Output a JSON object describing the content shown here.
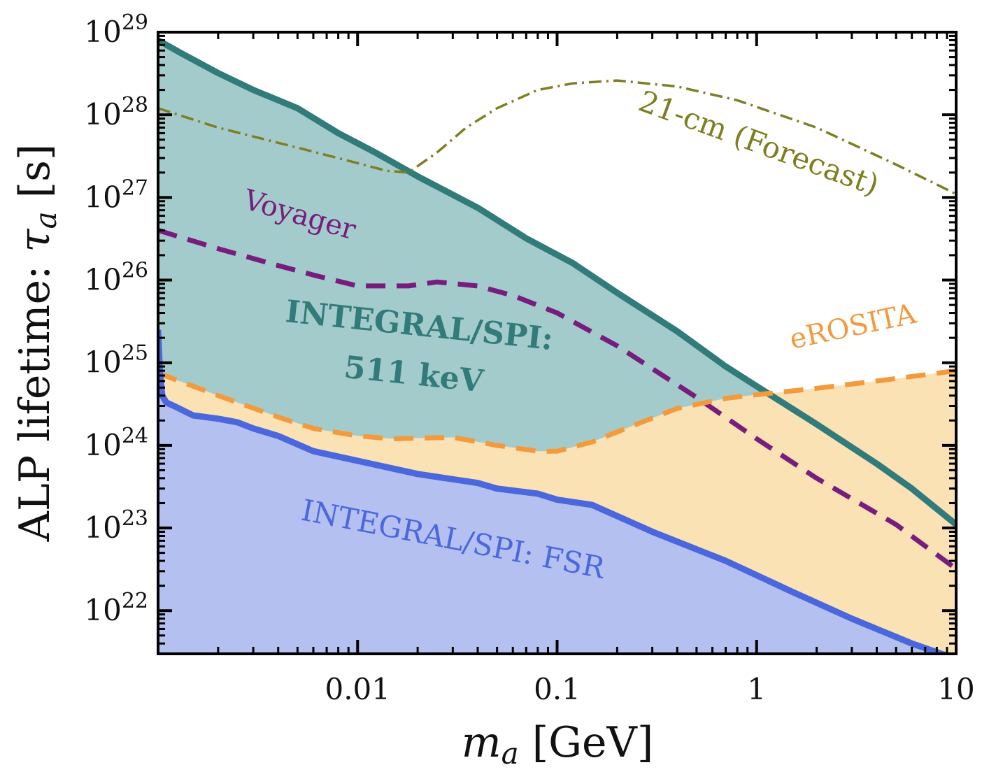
{
  "chart_data": {
    "type": "line",
    "title": "",
    "xlabel": "m_a [GeV]",
    "ylabel": "ALP lifetime: τ_a [s]",
    "xscale": "log",
    "yscale": "log",
    "xlim": [
      0.001,
      10
    ],
    "ylim": [
      3e+21,
      1e+29
    ],
    "x_ticks": [
      {
        "value": 0.01,
        "label": "0.01"
      },
      {
        "value": 0.1,
        "label": "0.1"
      },
      {
        "value": 1,
        "label": "1"
      },
      {
        "value": 10,
        "label": "10"
      }
    ],
    "y_ticks": [
      {
        "exp": 22,
        "label": "10",
        "sup": "22"
      },
      {
        "exp": 23,
        "label": "10",
        "sup": "23"
      },
      {
        "exp": 24,
        "label": "10",
        "sup": "24"
      },
      {
        "exp": 25,
        "label": "10",
        "sup": "25"
      },
      {
        "exp": 26,
        "label": "10",
        "sup": "26"
      },
      {
        "exp": 27,
        "label": "10",
        "sup": "27"
      },
      {
        "exp": 28,
        "label": "10",
        "sup": "28"
      },
      {
        "exp": 29,
        "label": "10",
        "sup": "29"
      }
    ],
    "grid": false,
    "series": [
      {
        "name": "INTEGRAL/SPI: 511 keV",
        "label_line1": "INTEGRAL/SPI:",
        "label_line2": "511 keV",
        "style": "solid",
        "filled": true,
        "color": "#317b7a",
        "fill": "#a4cbcb",
        "x": [
          0.001,
          0.0013,
          0.002,
          0.003,
          0.005,
          0.008,
          0.012,
          0.02,
          0.04,
          0.07,
          0.12,
          0.2,
          0.4,
          0.7,
          1.0,
          2.0,
          4.0,
          6.0,
          10.0
        ],
        "y": [
          8e+28,
          5.6e+28,
          3.2e+28,
          2e+28,
          1.2e+28,
          6e+27,
          3.6e+27,
          1.8e+27,
          7.5e+26,
          3.2e+26,
          1.6e+26,
          7e+25,
          2.4e+25,
          9e+24,
          5.2e+24,
          1.8e+24,
          6e+23,
          3e+23,
          1.1e+23
        ]
      },
      {
        "name": "INTEGRAL/SPI: FSR",
        "style": "solid",
        "filled": true,
        "color": "#4b67dd",
        "fill": "#b3c0f0",
        "x": [
          0.001,
          0.00102,
          0.00105,
          0.0011,
          0.0012,
          0.0015,
          0.002,
          0.0025,
          0.003,
          0.004,
          0.006,
          0.01,
          0.02,
          0.04,
          0.05,
          0.08,
          0.1,
          0.15,
          0.3,
          0.7,
          1.5,
          3.0,
          6.0,
          10.0
        ],
        "y": [
          2.5e+25,
          8e+24,
          4e+24,
          3.3e+24,
          3e+24,
          2.3e+24,
          2.1e+24,
          1.9e+24,
          1.6e+24,
          1.3e+24,
          8.5e+23,
          6.5e+23,
          4.5e+23,
          3.5e+23,
          3e+23,
          2.6e+23,
          2.2e+23,
          1.9e+23,
          9e+22,
          4e+22,
          1.7e+22,
          8e+21,
          4e+21,
          2.6e+21
        ]
      },
      {
        "name": "Voyager",
        "style": "dashed",
        "filled": false,
        "color": "#761d7e",
        "x": [
          0.001,
          0.002,
          0.004,
          0.006,
          0.01,
          0.018,
          0.025,
          0.04,
          0.06,
          0.1,
          0.2,
          0.5,
          1.0,
          2.0,
          5.0,
          10.0
        ],
        "y": [
          4e+26,
          2.4e+26,
          1.5e+26,
          1.15e+26,
          8.5e+25,
          8.5e+25,
          9.5e+25,
          8.5e+25,
          6.5e+25,
          4e+25,
          1.6e+25,
          3.8e+24,
          1.2e+24,
          4e+23,
          1.1e+23,
          3.2e+22
        ]
      },
      {
        "name": "eROSITA",
        "style": "dashed",
        "filled": true,
        "color": "#f39a3d",
        "fill": "#fae2b4",
        "x": [
          0.001,
          0.002,
          0.004,
          0.006,
          0.01,
          0.015,
          0.03,
          0.05,
          0.08,
          0.1,
          0.15,
          0.25,
          0.4,
          0.7,
          1.0,
          2.0,
          4.0,
          10.0
        ],
        "y": [
          7.5e+24,
          4e+24,
          2.2e+24,
          1.6e+24,
          1.3e+24,
          1.2e+24,
          1.25e+24,
          1e+24,
          8.5e+23,
          8.5e+23,
          1.1e+24,
          1.8e+24,
          2.8e+24,
          3.7e+24,
          4.1e+24,
          4.9e+24,
          6e+24,
          8e+24
        ]
      },
      {
        "name": "21-cm (Forecast)",
        "style": "dashdot",
        "filled": false,
        "color": "#7e7e22",
        "x": [
          0.001,
          0.002,
          0.005,
          0.01,
          0.014,
          0.018,
          0.025,
          0.035,
          0.05,
          0.08,
          0.12,
          0.2,
          0.4,
          0.8,
          2.0,
          5.0,
          10.0
        ],
        "y": [
          1.2e+28,
          7e+27,
          4e+27,
          2.6e+27,
          2.1e+27,
          2e+27,
          3.5e+27,
          7e+27,
          1.2e+28,
          2e+28,
          2.4e+28,
          2.6e+28,
          2.2e+28,
          1.5e+28,
          7e+27,
          2.5e+27,
          1.1e+27
        ]
      }
    ]
  }
}
